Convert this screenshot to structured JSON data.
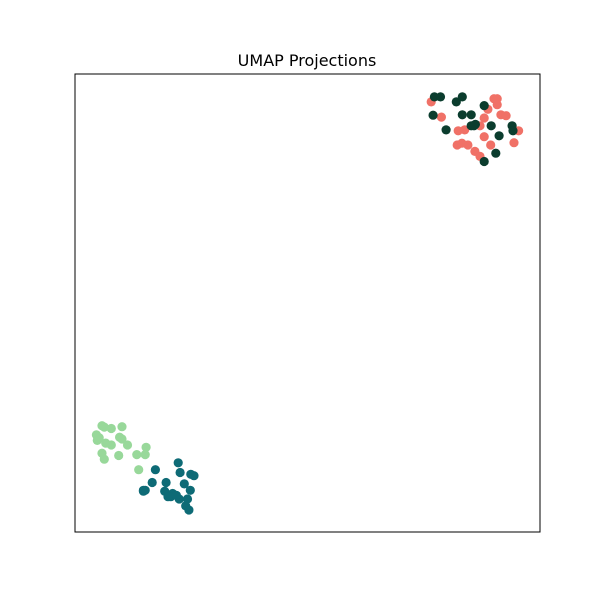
{
  "chart_data": {
    "type": "scatter",
    "title": "UMAP Projections",
    "xlabel": "",
    "ylabel": "",
    "xlim": [
      0,
      100
    ],
    "ylim": [
      0,
      100
    ],
    "axis_ticks": false,
    "grid": false,
    "legend": false,
    "series": [
      {
        "color": "#f07167",
        "points": [
          [
            76.6,
            93.9
          ],
          [
            78.8,
            90.6
          ],
          [
            82.4,
            87.6
          ],
          [
            83.8,
            87.8
          ],
          [
            84.5,
            84.5
          ],
          [
            87.1,
            88.7
          ],
          [
            88.0,
            90.4
          ],
          [
            88.8,
            92.3
          ],
          [
            90.1,
            94.6
          ],
          [
            90.8,
            94.6
          ],
          [
            90.8,
            93.3
          ],
          [
            91.6,
            91.1
          ],
          [
            94.4,
            85.0
          ],
          [
            95.4,
            87.6
          ],
          [
            88.0,
            86.3
          ],
          [
            86.0,
            83.1
          ],
          [
            89.4,
            84.5
          ],
          [
            87.1,
            82.0
          ],
          [
            82.2,
            84.5
          ],
          [
            83.2,
            84.9
          ],
          [
            92.7,
            90.9
          ]
        ]
      },
      {
        "color": "#0b3d2e",
        "points": [
          [
            77.3,
            95.0
          ],
          [
            78.6,
            95.0
          ],
          [
            77.0,
            91.0
          ],
          [
            82.0,
            93.9
          ],
          [
            83.3,
            95.0
          ],
          [
            83.3,
            91.1
          ],
          [
            85.2,
            91.1
          ],
          [
            86.1,
            89.0
          ],
          [
            85.2,
            88.7
          ],
          [
            88.0,
            93.1
          ],
          [
            89.5,
            88.7
          ],
          [
            91.2,
            86.5
          ],
          [
            94.0,
            88.7
          ],
          [
            94.2,
            87.6
          ],
          [
            90.5,
            82.7
          ],
          [
            88.0,
            80.9
          ],
          [
            79.8,
            87.8
          ],
          [
            85.8,
            88.7
          ]
        ]
      },
      {
        "color": "#98d89a",
        "points": [
          [
            5.8,
            23.2
          ],
          [
            6.3,
            22.9
          ],
          [
            4.6,
            21.2
          ],
          [
            5.2,
            20.6
          ],
          [
            6.6,
            19.4
          ],
          [
            7.8,
            22.6
          ],
          [
            10.1,
            23.0
          ],
          [
            10.1,
            20.3
          ],
          [
            9.6,
            20.7
          ],
          [
            11.3,
            19.0
          ],
          [
            5.8,
            17.2
          ],
          [
            6.3,
            15.9
          ],
          [
            9.4,
            16.7
          ],
          [
            15.3,
            18.5
          ],
          [
            13.3,
            16.9
          ],
          [
            15.1,
            16.9
          ],
          [
            13.7,
            13.6
          ],
          [
            7.8,
            19.0
          ],
          [
            4.8,
            20.0
          ]
        ]
      },
      {
        "color": "#0e6b76",
        "points": [
          [
            17.3,
            13.6
          ],
          [
            22.2,
            15.1
          ],
          [
            22.6,
            13.0
          ],
          [
            24.9,
            12.6
          ],
          [
            25.6,
            12.3
          ],
          [
            16.6,
            10.8
          ],
          [
            19.6,
            10.8
          ],
          [
            23.5,
            10.5
          ],
          [
            24.8,
            9.1
          ],
          [
            19.3,
            8.9
          ],
          [
            21.0,
            8.4
          ],
          [
            20.6,
            7.7
          ],
          [
            22.4,
            7.2
          ],
          [
            24.2,
            7.2
          ],
          [
            14.7,
            8.9
          ],
          [
            15.1,
            9.1
          ],
          [
            23.8,
            5.7
          ],
          [
            24.5,
            4.8
          ],
          [
            20.0,
            7.7
          ],
          [
            14.7,
            9.1
          ],
          [
            21.8,
            8.0
          ]
        ]
      }
    ]
  }
}
